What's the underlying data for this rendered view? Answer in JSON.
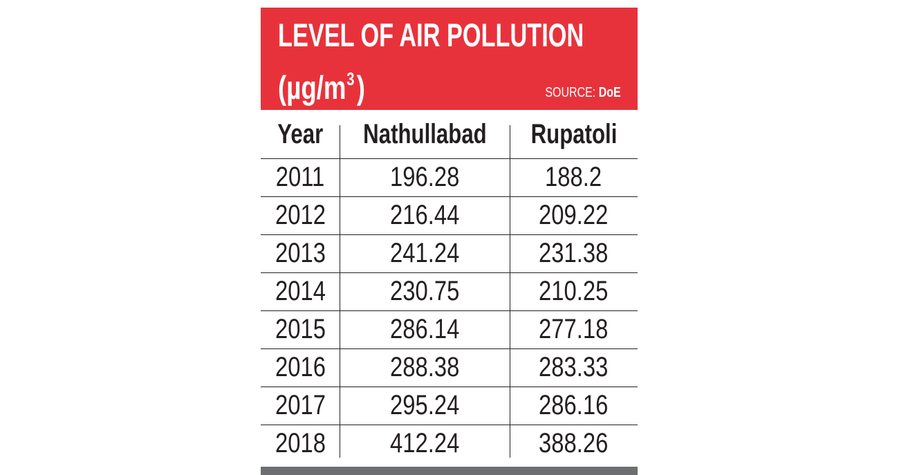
{
  "title": {
    "line1": "LEVEL OF AIR POLLUTION",
    "line2_prefix": "(µg/m",
    "line2_sup": "3",
    "line2_suffix": ")"
  },
  "source": {
    "label": "SOURCE:",
    "value": "DoE"
  },
  "colors": {
    "header_bg": "#e8323b",
    "header_text": "#ffffff",
    "footer_bar": "#6d6e71"
  },
  "chart_data": {
    "type": "table",
    "title": "LEVEL OF AIR POLLUTION (µg/m3)",
    "columns": [
      "Year",
      "Nathullabad",
      "Rupatoli"
    ],
    "rows": [
      [
        "2011",
        "196.28",
        "188.2"
      ],
      [
        "2012",
        "216.44",
        "209.22"
      ],
      [
        "2013",
        "241.24",
        "231.38"
      ],
      [
        "2014",
        "230.75",
        "210.25"
      ],
      [
        "2015",
        "286.14",
        "277.18"
      ],
      [
        "2016",
        "288.38",
        "283.33"
      ],
      [
        "2017",
        "295.24",
        "286.16"
      ],
      [
        "2018",
        "412.24",
        "388.26"
      ]
    ]
  }
}
